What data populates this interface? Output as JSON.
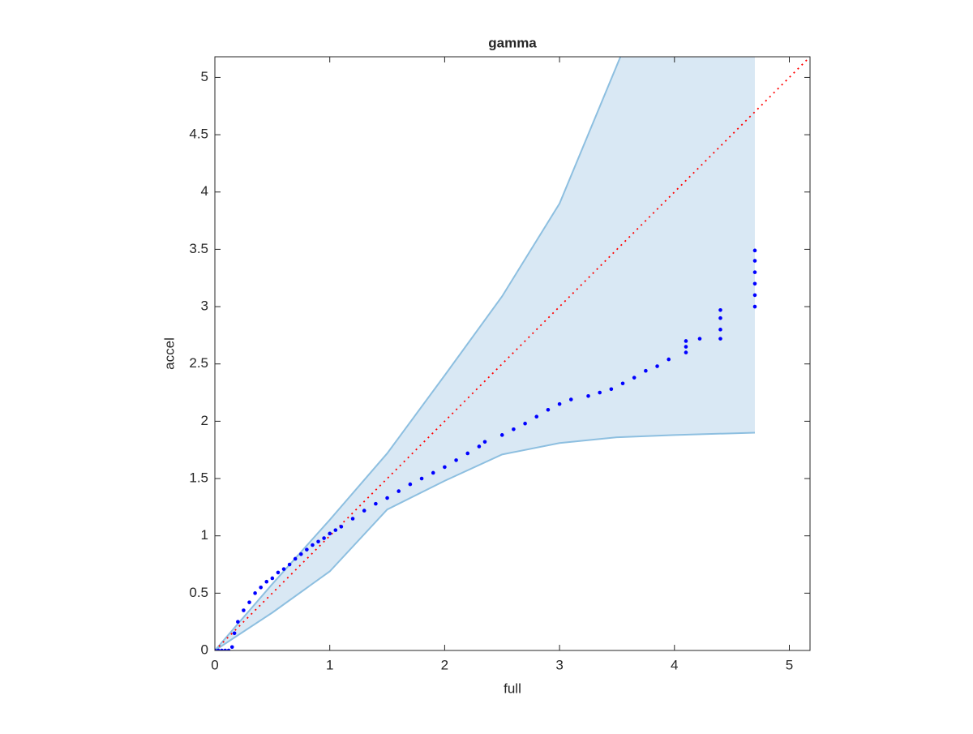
{
  "chart_data": {
    "type": "scatter",
    "title": "gamma",
    "x_label": "full",
    "y_label": "accel",
    "xlim": [
      0,
      5.18
    ],
    "ylim": [
      0,
      5.18
    ],
    "xticks": [
      0,
      1,
      2,
      3,
      4,
      5
    ],
    "yticks": [
      0,
      0.5,
      1,
      1.5,
      2,
      2.5,
      3,
      3.5,
      4,
      4.5,
      5
    ],
    "band": {
      "color": "#d9e8f4",
      "edge_color": "#8dbfe0",
      "upper_x": [
        0,
        0.5,
        1,
        1.5,
        2,
        2.5,
        3,
        3.53
      ],
      "upper_y": [
        0,
        0.58,
        1.14,
        1.72,
        2.4,
        3.09,
        3.9,
        5.18
      ],
      "lower_x": [
        0,
        0.5,
        1,
        1.5,
        2,
        2.5,
        3,
        3.5,
        4,
        4.7
      ],
      "lower_y": [
        0,
        0.33,
        0.69,
        1.23,
        1.48,
        1.71,
        1.81,
        1.86,
        1.88,
        1.9
      ]
    },
    "reference_line": {
      "color": "#ff0000",
      "x": [
        0,
        5.18
      ],
      "y": [
        0,
        5.18
      ]
    },
    "points": {
      "color": "#0000ff",
      "x": [
        0,
        0.03,
        0.06,
        0.09,
        0.12,
        0.15,
        0.17,
        0.2,
        0.25,
        0.3,
        0.35,
        0.4,
        0.45,
        0.5,
        0.55,
        0.6,
        0.65,
        0.7,
        0.75,
        0.8,
        0.85,
        0.9,
        0.95,
        1,
        1.05,
        1.1,
        1.2,
        1.3,
        1.4,
        1.5,
        1.6,
        1.7,
        1.8,
        1.9,
        2,
        2.1,
        2.2,
        2.3,
        2.35,
        2.5,
        2.6,
        2.7,
        2.8,
        2.9,
        3,
        3.1,
        3.25,
        3.35,
        3.45,
        3.55,
        3.65,
        3.75,
        3.85,
        3.95,
        4.1,
        4.1,
        4.1,
        4.22,
        4.4,
        4.4,
        4.4,
        4.4,
        4.7,
        4.7,
        4.7,
        4.7,
        4.7,
        4.7
      ],
      "y": [
        0,
        0,
        0,
        0,
        0,
        0.03,
        0.15,
        0.25,
        0.35,
        0.42,
        0.5,
        0.55,
        0.6,
        0.63,
        0.68,
        0.71,
        0.75,
        0.8,
        0.84,
        0.88,
        0.92,
        0.95,
        0.98,
        1.02,
        1.05,
        1.08,
        1.15,
        1.22,
        1.28,
        1.33,
        1.39,
        1.45,
        1.5,
        1.55,
        1.6,
        1.66,
        1.72,
        1.78,
        1.82,
        1.88,
        1.93,
        1.98,
        2.04,
        2.1,
        2.15,
        2.19,
        2.22,
        2.25,
        2.28,
        2.33,
        2.38,
        2.44,
        2.48,
        2.54,
        2.6,
        2.65,
        2.7,
        2.72,
        2.72,
        2.8,
        2.9,
        2.97,
        3.0,
        3.1,
        3.2,
        3.3,
        3.4,
        3.49
      ]
    }
  }
}
